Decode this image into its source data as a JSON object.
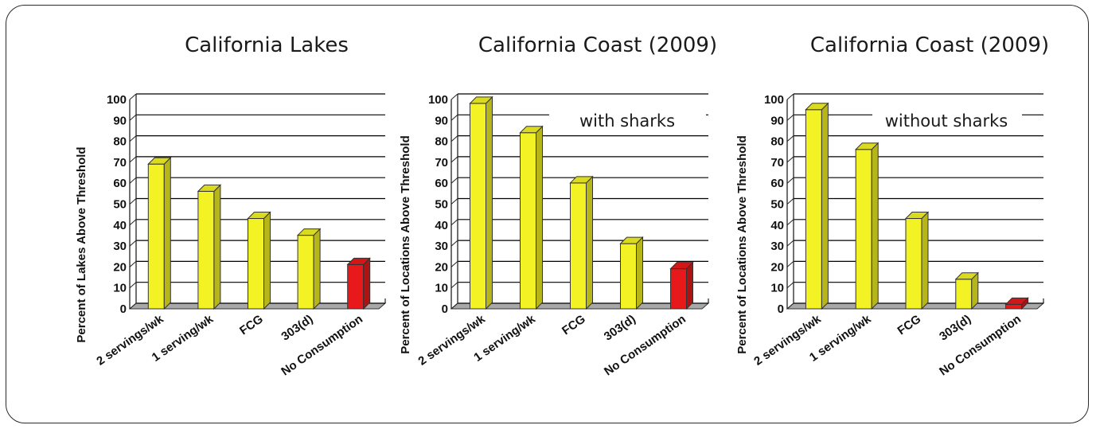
{
  "colors": {
    "bar_main": "#f2f224",
    "bar_highlight": "#e8191b",
    "grid": "#000000",
    "floor": "#a8a8a8"
  },
  "chart_data": [
    {
      "type": "bar",
      "title": "California Lakes",
      "annotation": "",
      "ylabel": "Percent of Lakes Above Threshold",
      "xlabel": "",
      "ylim": [
        0,
        100
      ],
      "yticks": [
        0,
        10,
        20,
        30,
        40,
        50,
        60,
        70,
        80,
        90,
        100
      ],
      "grid": true,
      "categories": [
        "2 servings/wk",
        "1 serving/wk",
        "FCG",
        "303(d)",
        "No Consumption"
      ],
      "values": [
        68,
        55,
        42,
        34,
        20
      ],
      "bar_colors": [
        "#f2f224",
        "#f2f224",
        "#f2f224",
        "#f2f224",
        "#e8191b"
      ]
    },
    {
      "type": "bar",
      "title": "California Coast (2009)",
      "annotation": "with sharks",
      "ylabel": "Percent of Locations Above Threshold",
      "xlabel": "",
      "ylim": [
        0,
        100
      ],
      "yticks": [
        0,
        10,
        20,
        30,
        40,
        50,
        60,
        70,
        80,
        90,
        100
      ],
      "grid": true,
      "categories": [
        "2 servings/wk",
        "1 serving/wk",
        "FCG",
        "303(d)",
        "No Consumption"
      ],
      "values": [
        97,
        83,
        59,
        30,
        18
      ],
      "bar_colors": [
        "#f2f224",
        "#f2f224",
        "#f2f224",
        "#f2f224",
        "#e8191b"
      ]
    },
    {
      "type": "bar",
      "title": "California Coast (2009)",
      "annotation": "without  sharks",
      "ylabel": "Percent of Locations Above Threshold",
      "xlabel": "",
      "ylim": [
        0,
        100
      ],
      "yticks": [
        0,
        10,
        20,
        30,
        40,
        50,
        60,
        70,
        80,
        90,
        100
      ],
      "grid": true,
      "categories": [
        "2 servings/wk",
        "1 serving/wk",
        "FCG",
        "303(d)",
        "No Consumption"
      ],
      "values": [
        94,
        75,
        42,
        13,
        1
      ],
      "bar_colors": [
        "#f2f224",
        "#f2f224",
        "#f2f224",
        "#f2f224",
        "#e8191b"
      ]
    }
  ]
}
